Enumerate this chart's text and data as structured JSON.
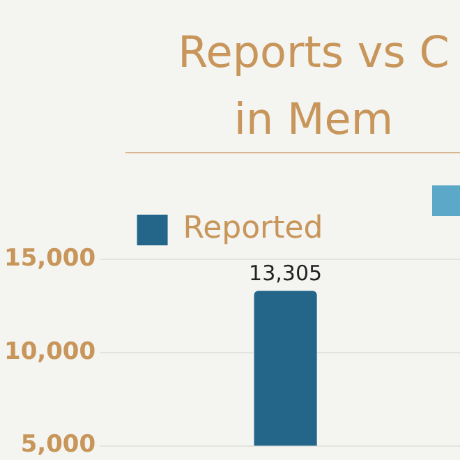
{
  "chart_data": {
    "type": "bar",
    "title": "Reports vs C\nin Mem",
    "categories": [
      null
    ],
    "series": [
      {
        "name": "Reported",
        "color": "#23668a",
        "values": [
          13305
        ],
        "value_labels": [
          "13,305"
        ]
      }
    ],
    "ylim": [
      5000,
      15000
    ],
    "yticks": [
      {
        "value": 5000,
        "label": "5,000"
      },
      {
        "value": 10000,
        "label": "10,000"
      },
      {
        "value": 15000,
        "label": "15,000"
      }
    ],
    "grid": "y",
    "legend": "top",
    "tick_labels": "y"
  }
}
